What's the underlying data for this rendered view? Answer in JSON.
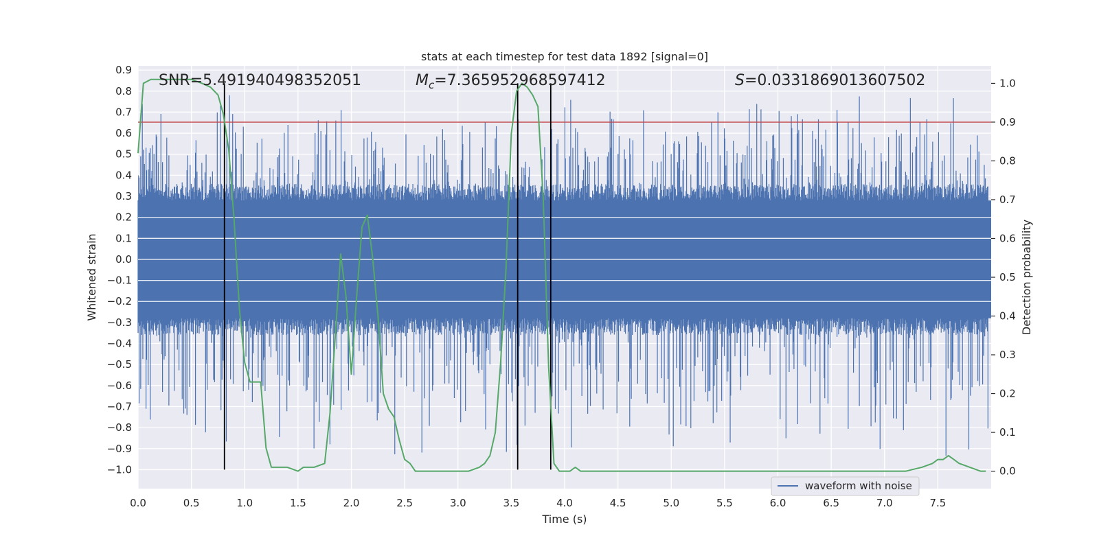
{
  "chart_data": {
    "type": "line",
    "title": "stats at each timestep for test data 1892 [signal=0]",
    "xlabel": "Time (s)",
    "ylabel": "Whitened strain",
    "y2label": "Detection probability",
    "xlim": [
      0.0,
      8.0
    ],
    "ylim": [
      -1.09,
      0.92
    ],
    "y2lim": [
      -0.045,
      1.045
    ],
    "xticks": [
      "0.0",
      "0.5",
      "1.0",
      "1.5",
      "2.0",
      "2.5",
      "3.0",
      "3.5",
      "4.0",
      "4.5",
      "5.0",
      "5.5",
      "6.0",
      "6.5",
      "7.0",
      "7.5"
    ],
    "yticks": [
      "0.9",
      "0.8",
      "0.7",
      "0.6",
      "0.5",
      "0.4",
      "0.3",
      "0.2",
      "0.1",
      "0.0",
      "−0.1",
      "−0.2",
      "−0.3",
      "−0.4",
      "−0.5",
      "−0.6",
      "−0.7",
      "−0.8",
      "−0.9",
      "−1.0"
    ],
    "y2ticks": [
      "1.0",
      "0.9",
      "0.8",
      "0.7",
      "0.6",
      "0.5",
      "0.4",
      "0.3",
      "0.2",
      "0.1",
      "0.0"
    ],
    "grid": true,
    "legend": {
      "entries": [
        "waveform with noise"
      ],
      "placement": "lower-right"
    },
    "annotations": {
      "snr": "SNR=5.491940498352051",
      "mc_prefix": "M",
      "mc_sub": "c",
      "mc_value": "=7.365952968597412",
      "s_prefix": "S",
      "s_value": "=0.0331869013607502"
    },
    "colors": {
      "waveform": "#4c72b0",
      "probability": "#55a868",
      "threshold": "#c44e52",
      "markers": "#000000",
      "background": "#eaeaf2",
      "grid": "#ffffff"
    },
    "series": [
      {
        "name": "waveform with noise",
        "kind": "noise",
        "core_abs": 0.28,
        "spike_range": [
          -1.0,
          0.82
        ]
      },
      {
        "kind": "probability",
        "axis": "right",
        "x": [
          0.0,
          0.05,
          0.12,
          0.2,
          0.3,
          0.4,
          0.5,
          0.6,
          0.68,
          0.75,
          0.8,
          0.85,
          0.9,
          0.95,
          1.0,
          1.05,
          1.1,
          1.15,
          1.2,
          1.25,
          1.3,
          1.35,
          1.4,
          1.5,
          1.55,
          1.6,
          1.65,
          1.75,
          1.8,
          1.85,
          1.9,
          1.95,
          2.0,
          2.05,
          2.1,
          2.15,
          2.2,
          2.25,
          2.3,
          2.35,
          2.4,
          2.45,
          2.5,
          2.55,
          2.6,
          2.7,
          2.8,
          2.9,
          3.0,
          3.1,
          3.2,
          3.25,
          3.3,
          3.35,
          3.4,
          3.45,
          3.5,
          3.55,
          3.6,
          3.65,
          3.7,
          3.75,
          3.8,
          3.85,
          3.9,
          3.95,
          4.0,
          4.05,
          4.1,
          4.15,
          4.2,
          4.3,
          4.4,
          4.5,
          4.6,
          4.8,
          5.0,
          5.2,
          5.4,
          5.5,
          5.7,
          5.8,
          5.9,
          6.0,
          6.2,
          6.5,
          6.8,
          6.9,
          7.0,
          7.2,
          7.35,
          7.45,
          7.5,
          7.55,
          7.6,
          7.65,
          7.7,
          7.8,
          7.9,
          7.95
        ],
        "y": [
          0.82,
          1.0,
          1.01,
          1.01,
          1.01,
          1.01,
          1.01,
          1.0,
          0.99,
          0.97,
          0.92,
          0.83,
          0.65,
          0.42,
          0.28,
          0.23,
          0.23,
          0.23,
          0.06,
          0.01,
          0.01,
          0.01,
          0.01,
          0.0,
          0.01,
          0.01,
          0.01,
          0.02,
          0.15,
          0.35,
          0.56,
          0.45,
          0.25,
          0.45,
          0.63,
          0.66,
          0.55,
          0.4,
          0.2,
          0.16,
          0.14,
          0.08,
          0.03,
          0.02,
          0.0,
          0.0,
          0.0,
          0.0,
          0.0,
          0.0,
          0.01,
          0.02,
          0.04,
          0.1,
          0.28,
          0.52,
          0.87,
          0.98,
          1.0,
          0.99,
          0.97,
          0.94,
          0.7,
          0.27,
          0.02,
          0.0,
          0.0,
          0.0,
          0.01,
          0.0,
          0.0,
          0.0,
          0.0,
          0.0,
          0.0,
          0.0,
          0.0,
          0.0,
          0.0,
          0.0,
          0.0,
          0.0,
          0.0,
          0.0,
          0.0,
          0.0,
          0.0,
          0.0,
          0.0,
          0.0,
          0.01,
          0.02,
          0.03,
          0.03,
          0.04,
          0.03,
          0.02,
          0.01,
          0.0,
          0.0
        ]
      },
      {
        "kind": "threshold",
        "axis": "right",
        "y": 0.9
      },
      {
        "kind": "vlines",
        "x": [
          0.81,
          3.56,
          3.87
        ]
      }
    ]
  }
}
